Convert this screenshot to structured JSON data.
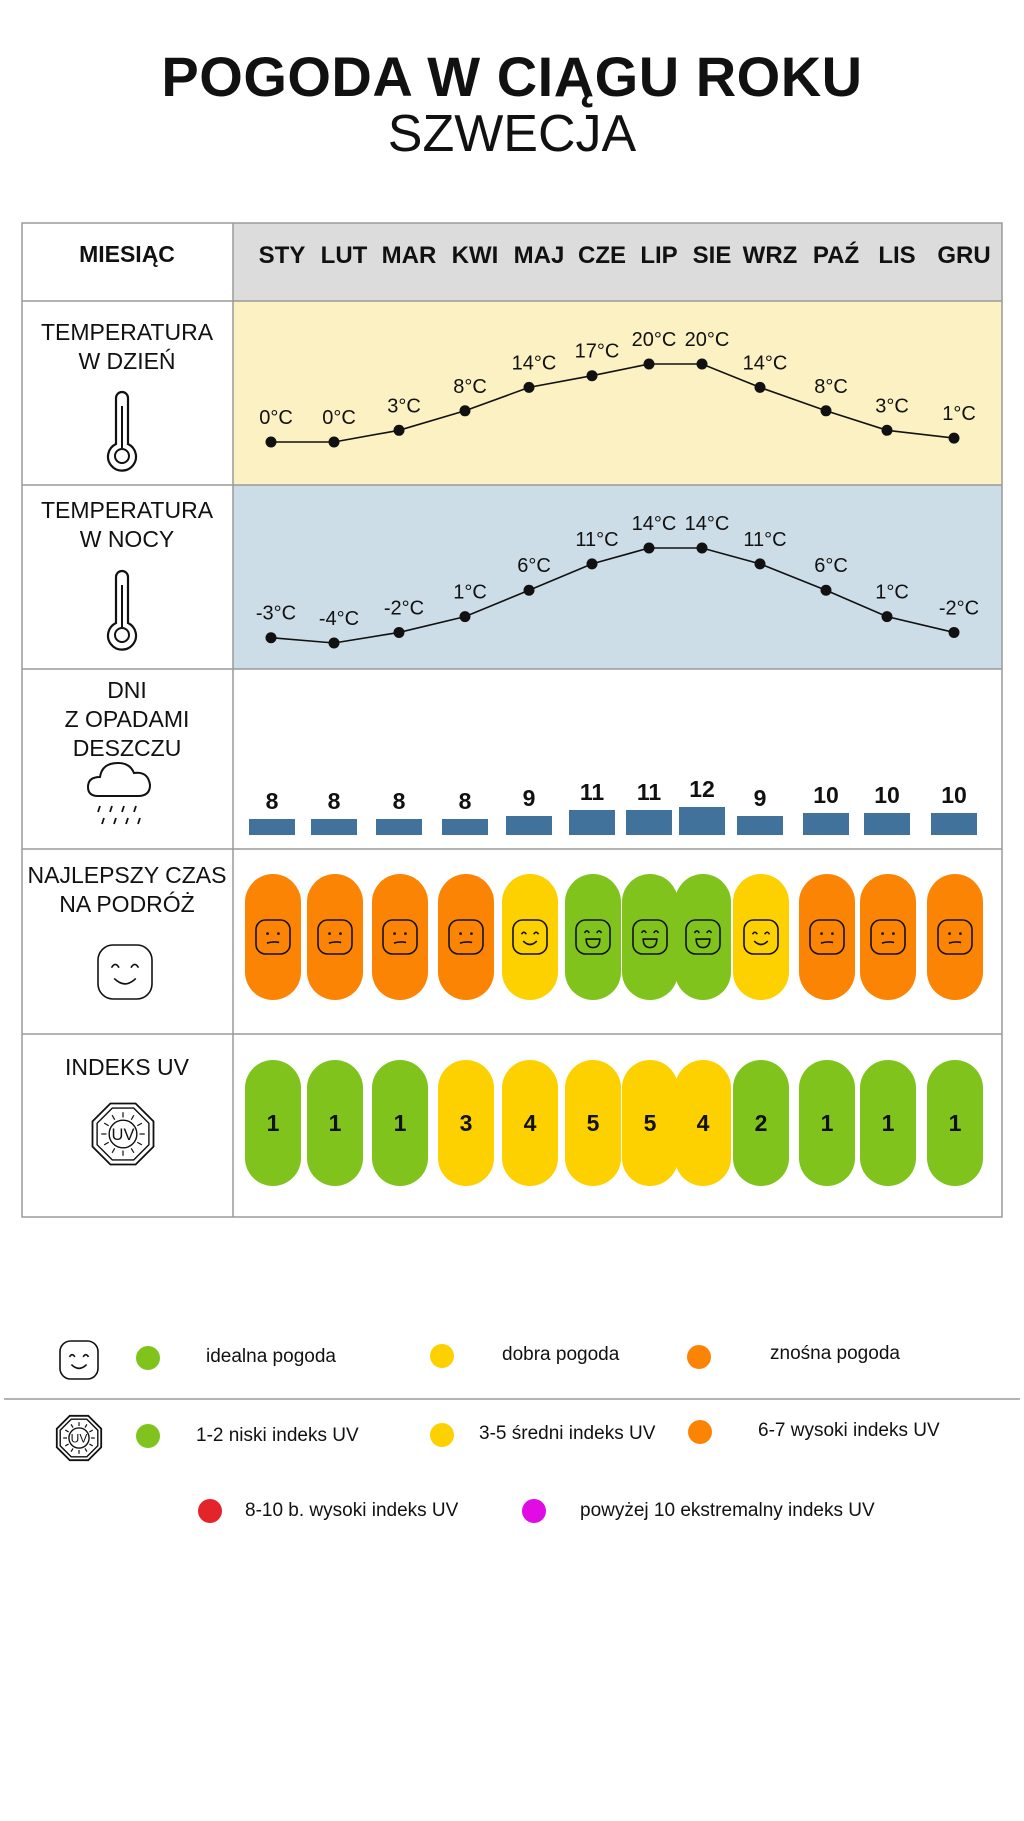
{
  "header": {
    "title": "POGODA W CIĄGU ROKU",
    "subtitle": "SZWECJA"
  },
  "rows": {
    "month": "MIESIĄC",
    "day_temp": "TEMPERATURA\nW DZIEŃ",
    "night_temp": "TEMPERATURA\nW NOCY",
    "rain": "DNI\nZ OPADAMI\nDESZCZU",
    "travel": "NAJLEPSZY CZAS\nNA PODRÓŻ",
    "uv": "INDEKS UV"
  },
  "colors": {
    "day_bg": "#fbf1c2",
    "night_bg": "#cddde8",
    "header_bg": "#dcdcdc",
    "rain_bar": "#40729c",
    "green": "#7fc31c",
    "yellow": "#fdd000",
    "orange": "#fb8404",
    "red": "#e3242b",
    "magenta": "#e10be3"
  },
  "icons": {
    "thermometer": "thermometer-icon",
    "rain": "rain-cloud-icon",
    "smile": "smiley-icon",
    "uv": "uv-sun-icon"
  },
  "chart_data": {
    "type": "table",
    "categories": [
      "STY",
      "LUT",
      "MAR",
      "KWI",
      "MAJ",
      "CZE",
      "LIP",
      "SIE",
      "WRZ",
      "PAŹ",
      "LIS",
      "GRU"
    ],
    "series": [
      {
        "name": "TEMPERATURA W DZIEŃ",
        "type": "line",
        "values": [
          0,
          0,
          3,
          8,
          14,
          17,
          20,
          20,
          14,
          8,
          3,
          1
        ],
        "labels": [
          "0°C",
          "0°C",
          "3°C",
          "8°C",
          "14°C",
          "17°C",
          "20°C",
          "20°C",
          "14°C",
          "8°C",
          "3°C",
          "1°C"
        ]
      },
      {
        "name": "TEMPERATURA W NOCY",
        "type": "line",
        "values": [
          -3,
          -4,
          -2,
          1,
          6,
          11,
          14,
          14,
          11,
          6,
          1,
          -2
        ],
        "labels": [
          "-3°C",
          "-4°C",
          "-2°C",
          "1°C",
          "6°C",
          "11°C",
          "14°C",
          "14°C",
          "11°C",
          "6°C",
          "1°C",
          "-2°C"
        ]
      },
      {
        "name": "DNI Z OPADAMI DESZCZU",
        "type": "bar",
        "values": [
          8,
          8,
          8,
          8,
          9,
          11,
          11,
          12,
          9,
          10,
          10,
          10
        ]
      },
      {
        "name": "NAJLEPSZY CZAS NA PODRÓŻ",
        "type": "rating",
        "values": [
          "znośna",
          "znośna",
          "znośna",
          "znośna",
          "dobra",
          "idealna",
          "idealna",
          "idealna",
          "dobra",
          "znośna",
          "znośna",
          "znośna"
        ]
      },
      {
        "name": "INDEKS UV",
        "type": "index",
        "values": [
          1,
          1,
          1,
          3,
          4,
          5,
          5,
          4,
          2,
          1,
          1,
          1
        ]
      }
    ]
  },
  "legend": {
    "weather": [
      {
        "label": "idealna pogoda",
        "color": "#7fc31c"
      },
      {
        "label": "dobra pogoda",
        "color": "#fdd000"
      },
      {
        "label": "znośna pogoda",
        "color": "#fb8404"
      }
    ],
    "uv": [
      {
        "label": "1-2 niski indeks UV",
        "color": "#7fc31c"
      },
      {
        "label": "3-5 średni indeks UV",
        "color": "#fdd000"
      },
      {
        "label": "6-7 wysoki indeks UV",
        "color": "#fb8404"
      },
      {
        "label": "8-10 b. wysoki indeks UV",
        "color": "#e3242b"
      },
      {
        "label": "powyżej 10 ekstremalny indeks UV",
        "color": "#e10be3"
      }
    ]
  }
}
